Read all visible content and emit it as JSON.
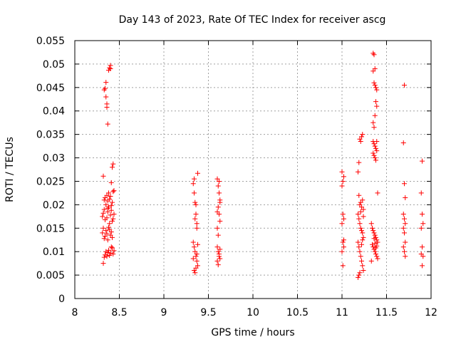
{
  "chart_data": {
    "type": "scatter",
    "title": "Day 143 of 2023, Rate Of TEC Index for receiver ascg",
    "xlabel": "GPS time / hours",
    "ylabel": "ROTI / TECUs",
    "xlim": [
      8,
      12
    ],
    "ylim": [
      0,
      0.055
    ],
    "xticks": [
      "8",
      "8.5",
      "9",
      "9.5",
      "10",
      "10.5",
      "11",
      "11.5",
      "12"
    ],
    "yticks": [
      "0",
      "0.005",
      "0.01",
      "0.015",
      "0.02",
      "0.025",
      "0.03",
      "0.035",
      "0.04",
      "0.045",
      "0.05",
      "0.055"
    ],
    "grid": true,
    "marker": "+",
    "color": "#ff0000",
    "series": [
      {
        "points": [
          [
            8.32,
            0.0261
          ],
          [
            8.33,
            0.0445
          ],
          [
            8.34,
            0.0448
          ],
          [
            8.35,
            0.0461
          ],
          [
            8.35,
            0.043
          ],
          [
            8.36,
            0.0415
          ],
          [
            8.36,
            0.0408
          ],
          [
            8.37,
            0.0372
          ],
          [
            8.38,
            0.0487
          ],
          [
            8.39,
            0.0492
          ],
          [
            8.4,
            0.0497
          ],
          [
            8.4,
            0.049
          ],
          [
            8.41,
            0.0247
          ],
          [
            8.42,
            0.028
          ],
          [
            8.43,
            0.0287
          ],
          [
            8.32,
            0.0075
          ],
          [
            8.33,
            0.0088
          ],
          [
            8.34,
            0.0093
          ],
          [
            8.35,
            0.01
          ],
          [
            8.36,
            0.009
          ],
          [
            8.37,
            0.0098
          ],
          [
            8.38,
            0.0103
          ],
          [
            8.39,
            0.0092
          ],
          [
            8.4,
            0.0097
          ],
          [
            8.41,
            0.011
          ],
          [
            8.42,
            0.0108
          ],
          [
            8.43,
            0.0095
          ],
          [
            8.44,
            0.0102
          ],
          [
            8.31,
            0.014
          ],
          [
            8.32,
            0.015
          ],
          [
            8.33,
            0.0128
          ],
          [
            8.34,
            0.0133
          ],
          [
            8.35,
            0.0145
          ],
          [
            8.36,
            0.0138
          ],
          [
            8.37,
            0.0125
          ],
          [
            8.38,
            0.0152
          ],
          [
            8.39,
            0.0147
          ],
          [
            8.4,
            0.0135
          ],
          [
            8.41,
            0.0142
          ],
          [
            8.42,
            0.013
          ],
          [
            8.31,
            0.0175
          ],
          [
            8.32,
            0.0182
          ],
          [
            8.33,
            0.019
          ],
          [
            8.34,
            0.0168
          ],
          [
            8.35,
            0.02
          ],
          [
            8.36,
            0.0172
          ],
          [
            8.37,
            0.0185
          ],
          [
            8.38,
            0.0195
          ],
          [
            8.39,
            0.016
          ],
          [
            8.4,
            0.0178
          ],
          [
            8.41,
            0.0188
          ],
          [
            8.42,
            0.0165
          ],
          [
            8.43,
            0.017
          ],
          [
            8.44,
            0.018
          ],
          [
            8.33,
            0.021
          ],
          [
            8.34,
            0.0215
          ],
          [
            8.36,
            0.022
          ],
          [
            8.37,
            0.0208
          ],
          [
            8.38,
            0.0225
          ],
          [
            8.4,
            0.0218
          ],
          [
            8.42,
            0.0205
          ],
          [
            8.43,
            0.0228
          ],
          [
            8.44,
            0.023
          ],
          [
            8.39,
            0.0212
          ],
          [
            8.41,
            0.0198
          ],
          [
            8.37,
            0.0192
          ],
          [
            9.33,
            0.0245
          ],
          [
            9.34,
            0.0225
          ],
          [
            9.35,
            0.0205
          ],
          [
            9.36,
            0.018
          ],
          [
            9.37,
            0.016
          ],
          [
            9.38,
            0.0267
          ],
          [
            9.34,
            0.0255
          ],
          [
            9.35,
            0.017
          ],
          [
            9.36,
            0.02
          ],
          [
            9.37,
            0.015
          ],
          [
            9.33,
            0.012
          ],
          [
            9.34,
            0.011
          ],
          [
            9.35,
            0.01
          ],
          [
            9.36,
            0.009
          ],
          [
            9.37,
            0.008
          ],
          [
            9.38,
            0.007
          ],
          [
            9.34,
            0.006
          ],
          [
            9.35,
            0.0055
          ],
          [
            9.36,
            0.0065
          ],
          [
            9.37,
            0.0095
          ],
          [
            9.38,
            0.0115
          ],
          [
            9.33,
            0.0085
          ],
          [
            9.6,
            0.0255
          ],
          [
            9.61,
            0.024
          ],
          [
            9.62,
            0.0225
          ],
          [
            9.63,
            0.021
          ],
          [
            9.61,
            0.0195
          ],
          [
            9.62,
            0.018
          ],
          [
            9.63,
            0.0165
          ],
          [
            9.6,
            0.015
          ],
          [
            9.61,
            0.0135
          ],
          [
            9.62,
            0.025
          ],
          [
            9.63,
            0.0205
          ],
          [
            9.6,
            0.0185
          ],
          [
            9.6,
            0.011
          ],
          [
            9.61,
            0.01
          ],
          [
            9.62,
            0.009
          ],
          [
            9.63,
            0.0085
          ],
          [
            9.6,
            0.008
          ],
          [
            9.61,
            0.0072
          ],
          [
            9.62,
            0.0095
          ],
          [
            9.63,
            0.0105
          ],
          [
            11.0,
            0.027
          ],
          [
            11.01,
            0.025
          ],
          [
            11.02,
            0.026
          ],
          [
            11.0,
            0.024
          ],
          [
            11.01,
            0.018
          ],
          [
            11.02,
            0.017
          ],
          [
            11.0,
            0.016
          ],
          [
            11.01,
            0.012
          ],
          [
            11.02,
            0.011
          ],
          [
            11.0,
            0.01
          ],
          [
            11.01,
            0.007
          ],
          [
            11.02,
            0.0125
          ],
          [
            11.18,
            0.027
          ],
          [
            11.19,
            0.029
          ],
          [
            11.2,
            0.034
          ],
          [
            11.21,
            0.0335
          ],
          [
            11.22,
            0.0345
          ],
          [
            11.23,
            0.035
          ],
          [
            11.19,
            0.022
          ],
          [
            11.2,
            0.02
          ],
          [
            11.21,
            0.0205
          ],
          [
            11.22,
            0.0195
          ],
          [
            11.23,
            0.021
          ],
          [
            11.24,
            0.019
          ],
          [
            11.18,
            0.018
          ],
          [
            11.19,
            0.017
          ],
          [
            11.2,
            0.016
          ],
          [
            11.21,
            0.015
          ],
          [
            11.22,
            0.0145
          ],
          [
            11.23,
            0.014
          ],
          [
            11.24,
            0.013
          ],
          [
            11.18,
            0.012
          ],
          [
            11.19,
            0.011
          ],
          [
            11.2,
            0.01
          ],
          [
            11.21,
            0.009
          ],
          [
            11.22,
            0.008
          ],
          [
            11.23,
            0.007
          ],
          [
            11.24,
            0.006
          ],
          [
            11.19,
            0.005
          ],
          [
            11.18,
            0.0045
          ],
          [
            11.2,
            0.0055
          ],
          [
            11.22,
            0.0115
          ],
          [
            11.23,
            0.0125
          ],
          [
            11.24,
            0.0175
          ],
          [
            11.21,
            0.0185
          ],
          [
            11.35,
            0.0523
          ],
          [
            11.36,
            0.052
          ],
          [
            11.37,
            0.049
          ],
          [
            11.35,
            0.0485
          ],
          [
            11.36,
            0.046
          ],
          [
            11.37,
            0.0455
          ],
          [
            11.38,
            0.045
          ],
          [
            11.39,
            0.0445
          ],
          [
            11.38,
            0.042
          ],
          [
            11.39,
            0.041
          ],
          [
            11.37,
            0.039
          ],
          [
            11.35,
            0.0375
          ],
          [
            11.36,
            0.0365
          ],
          [
            11.35,
            0.0335
          ],
          [
            11.36,
            0.033
          ],
          [
            11.37,
            0.0325
          ],
          [
            11.38,
            0.032
          ],
          [
            11.39,
            0.0315
          ],
          [
            11.35,
            0.031
          ],
          [
            11.36,
            0.0305
          ],
          [
            11.37,
            0.03
          ],
          [
            11.38,
            0.0295
          ],
          [
            11.39,
            0.0335
          ],
          [
            11.33,
            0.016
          ],
          [
            11.34,
            0.015
          ],
          [
            11.35,
            0.0145
          ],
          [
            11.36,
            0.014
          ],
          [
            11.37,
            0.0135
          ],
          [
            11.38,
            0.013
          ],
          [
            11.39,
            0.0125
          ],
          [
            11.4,
            0.012
          ],
          [
            11.34,
            0.0115
          ],
          [
            11.35,
            0.011
          ],
          [
            11.36,
            0.0105
          ],
          [
            11.37,
            0.01
          ],
          [
            11.38,
            0.0095
          ],
          [
            11.39,
            0.009
          ],
          [
            11.4,
            0.0085
          ],
          [
            11.33,
            0.008
          ],
          [
            11.36,
            0.0128
          ],
          [
            11.37,
            0.0118
          ],
          [
            11.38,
            0.0108
          ],
          [
            11.39,
            0.0112
          ],
          [
            11.4,
            0.0225
          ],
          [
            11.7,
            0.0455
          ],
          [
            11.69,
            0.0332
          ],
          [
            11.7,
            0.0245
          ],
          [
            11.71,
            0.0215
          ],
          [
            11.69,
            0.018
          ],
          [
            11.7,
            0.017
          ],
          [
            11.71,
            0.016
          ],
          [
            11.69,
            0.015
          ],
          [
            11.7,
            0.014
          ],
          [
            11.71,
            0.012
          ],
          [
            11.69,
            0.011
          ],
          [
            11.7,
            0.01
          ],
          [
            11.71,
            0.009
          ],
          [
            11.9,
            0.0293
          ],
          [
            11.89,
            0.0225
          ],
          [
            11.9,
            0.018
          ],
          [
            11.91,
            0.016
          ],
          [
            11.89,
            0.015
          ],
          [
            11.9,
            0.011
          ],
          [
            11.91,
            0.009
          ],
          [
            11.89,
            0.0095
          ],
          [
            11.9,
            0.007
          ]
        ]
      }
    ]
  }
}
